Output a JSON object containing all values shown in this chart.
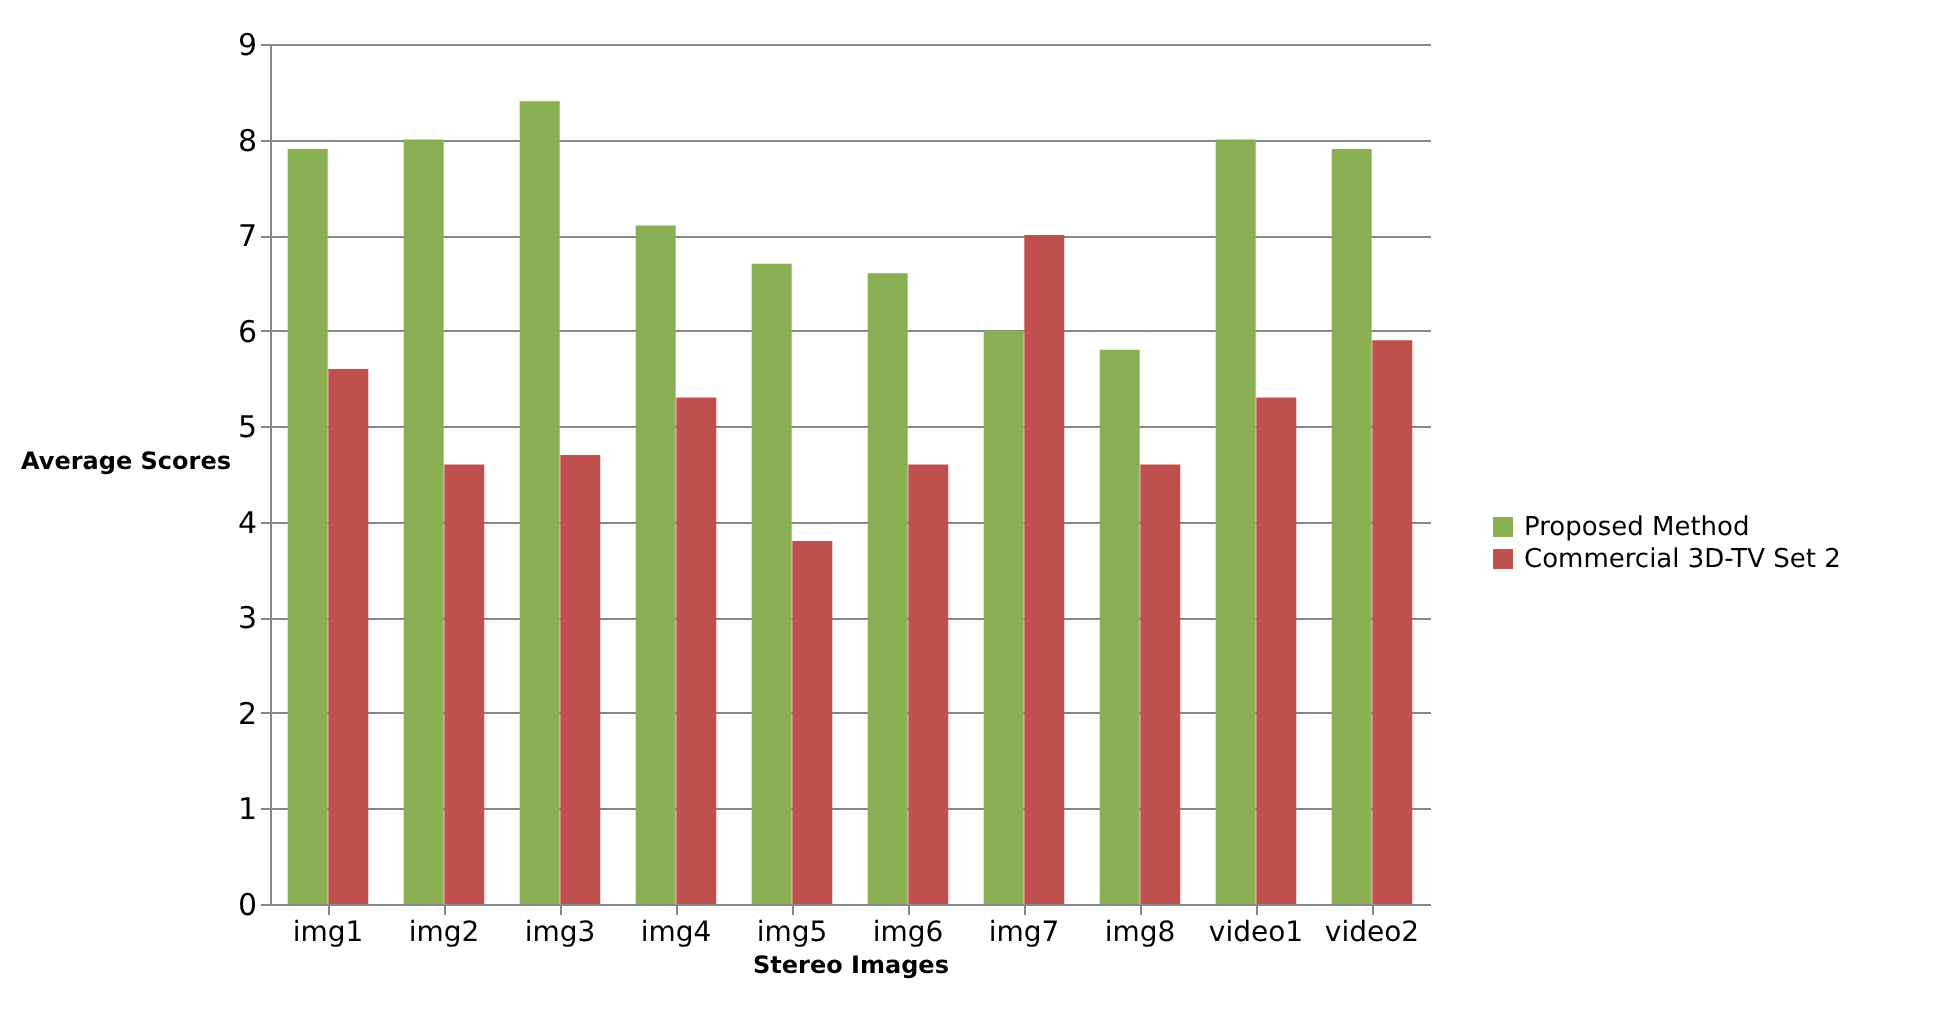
{
  "chart_data": {
    "type": "bar",
    "xlabel": "Stereo Images",
    "ylabel": "Average Scores",
    "categories": [
      "img1",
      "img2",
      "img3",
      "img4",
      "img5",
      "img6",
      "img7",
      "img8",
      "video1",
      "video2"
    ],
    "series": [
      {
        "name": "Proposed Method",
        "color": "#8aae52",
        "values": [
          7.9,
          8.0,
          8.4,
          7.1,
          6.7,
          6.6,
          6.0,
          5.8,
          8.0,
          7.9
        ]
      },
      {
        "name": "Commercial 3D-TV Set 2",
        "color": "#c0504d",
        "values": [
          5.6,
          4.6,
          4.7,
          5.3,
          3.8,
          4.6,
          7.0,
          4.6,
          5.3,
          5.9
        ]
      }
    ],
    "ylim": [
      0,
      9
    ],
    "yticks": [
      0,
      1,
      2,
      3,
      4,
      5,
      6,
      7,
      8,
      9
    ],
    "grid": "y",
    "legend": "right"
  }
}
